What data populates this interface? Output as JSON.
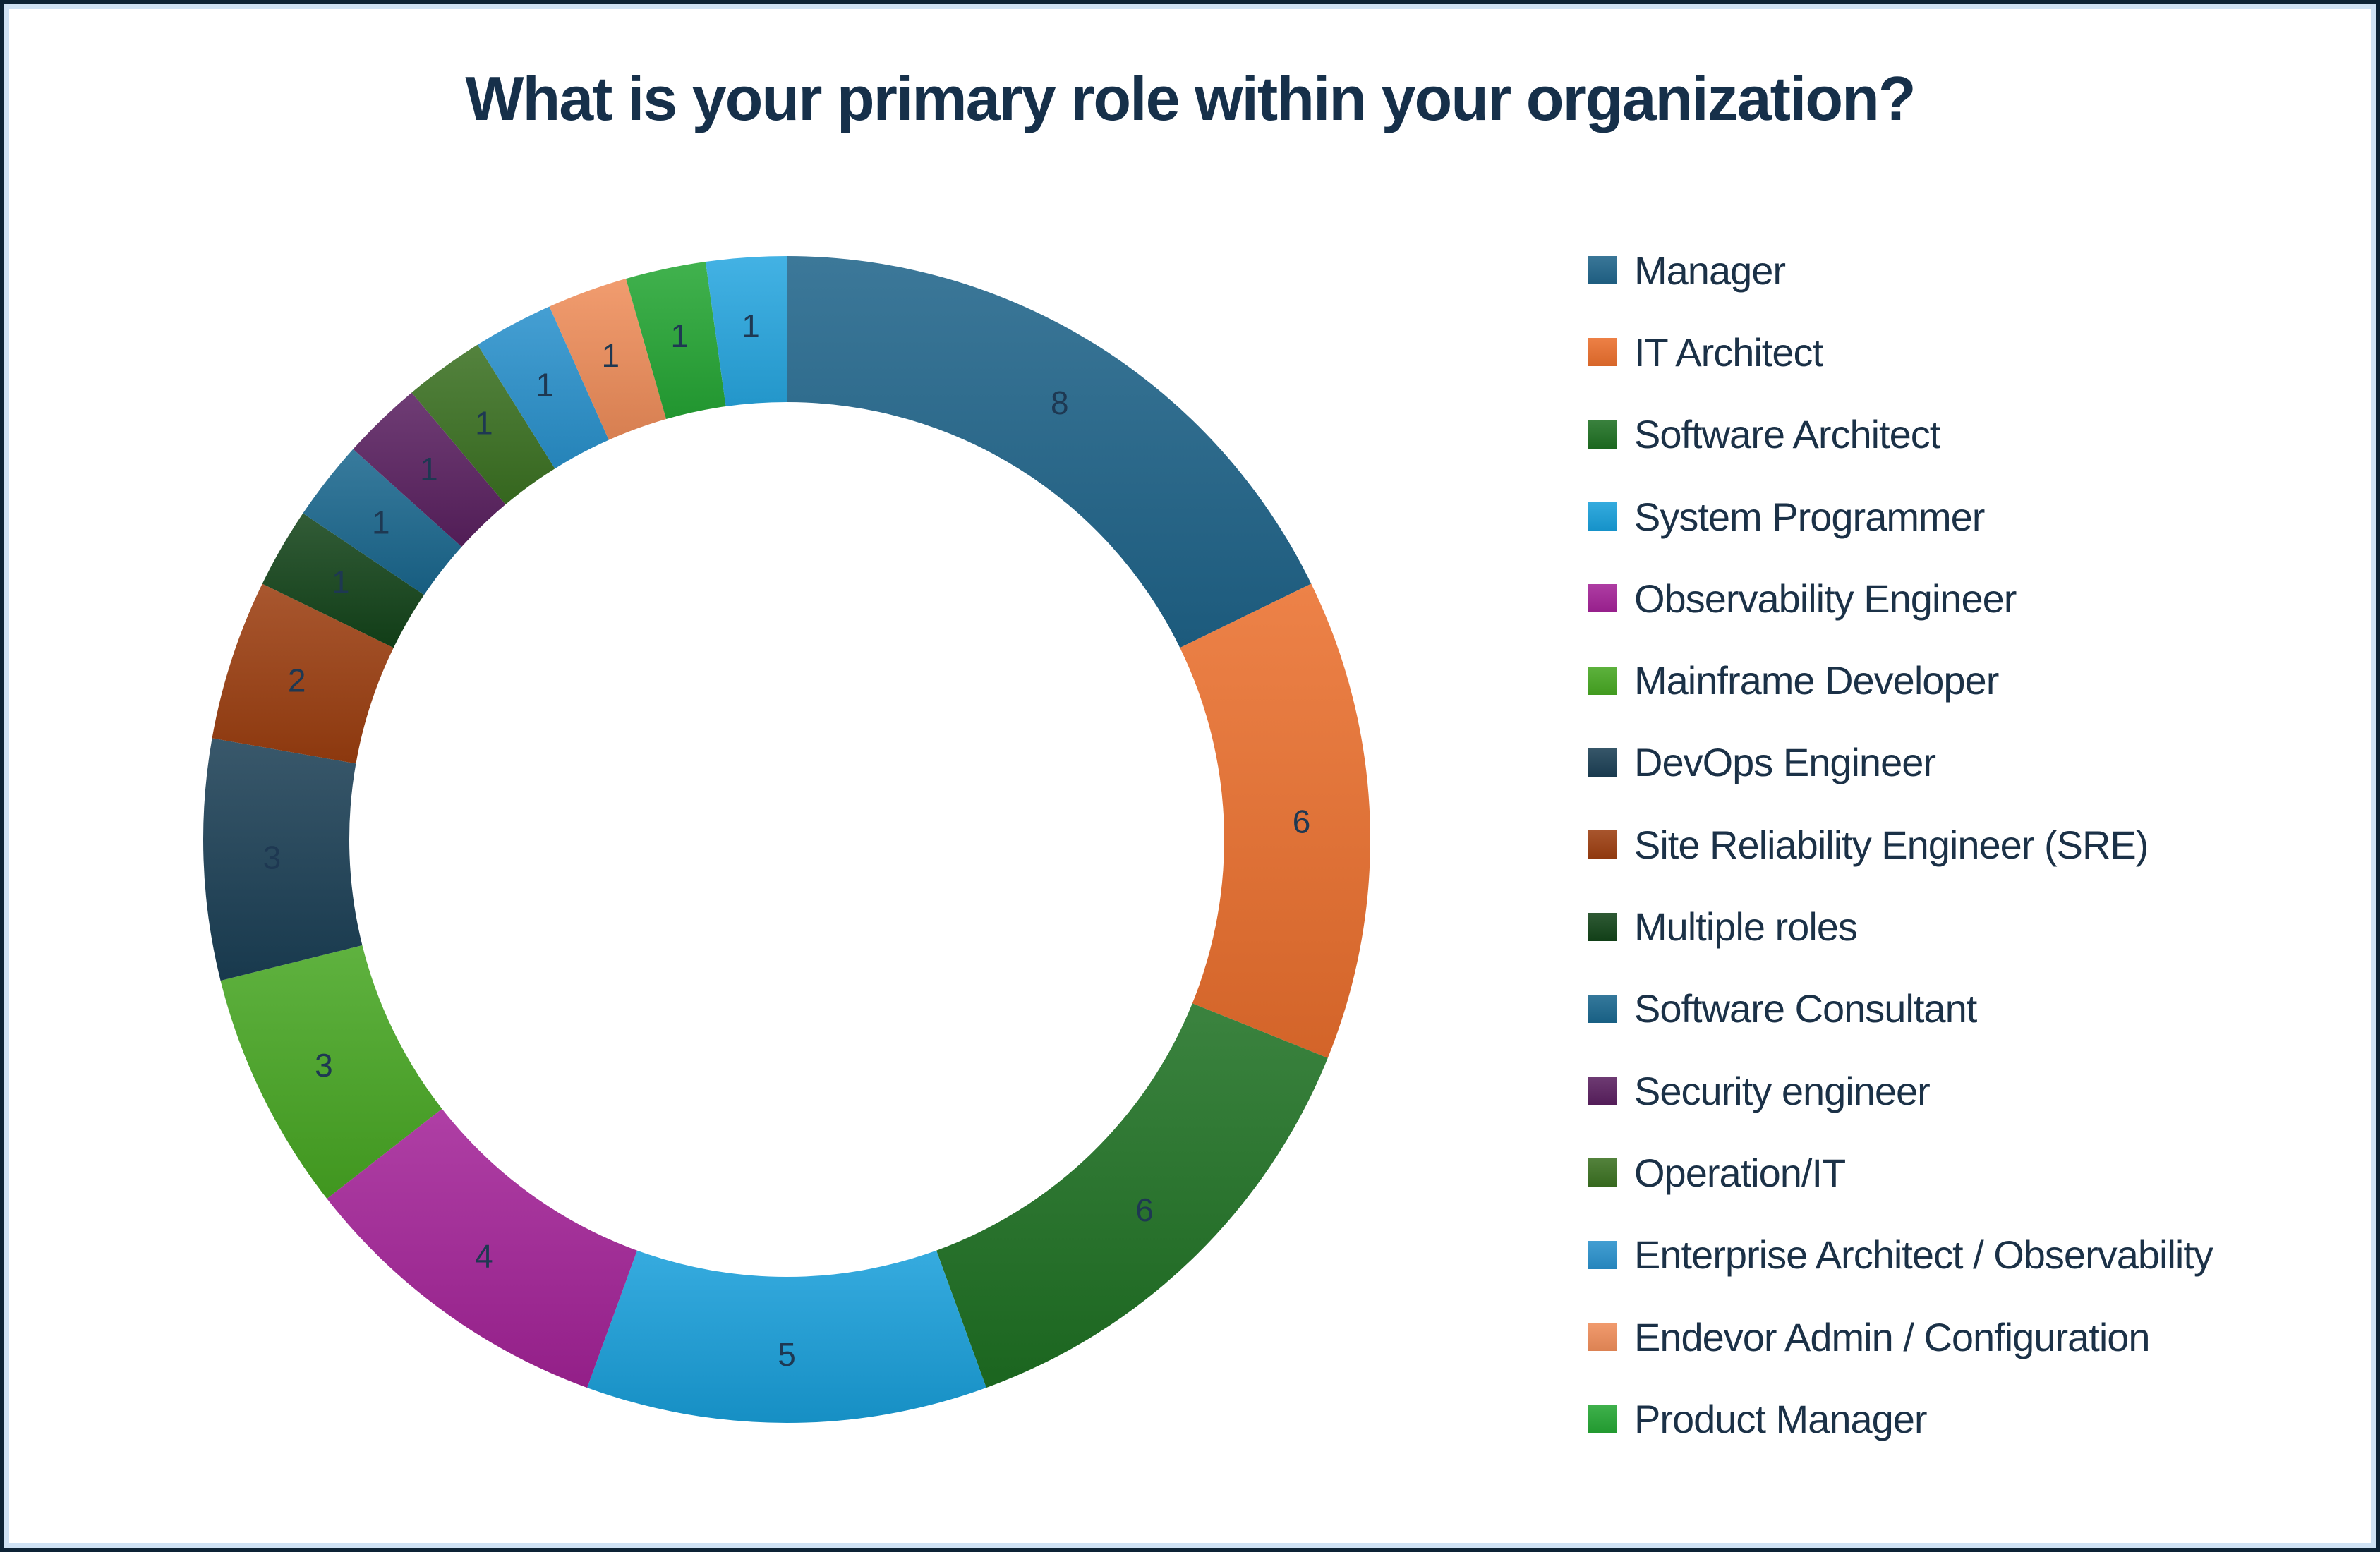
{
  "title": "What is your primary role within your organization?",
  "chart_data": {
    "type": "pie",
    "subtype": "donut",
    "start_angle_deg": 0,
    "direction": "clockwise",
    "total": 45,
    "legend_position": "right",
    "legend_visible_items": 15,
    "slices": [
      {
        "label": "Manager",
        "value": 8,
        "color": "#1f648a"
      },
      {
        "label": "IT Architect",
        "value": 6,
        "color": "#ea6f2d"
      },
      {
        "label": "Software Architect",
        "value": 6,
        "color": "#1e7022"
      },
      {
        "label": "System Programmer",
        "value": 5,
        "color": "#189fda"
      },
      {
        "label": "Observability Engineer",
        "value": 4,
        "color": "#a32297"
      },
      {
        "label": "Mainframe Developer",
        "value": 3,
        "color": "#47a722"
      },
      {
        "label": "DevOps Engineer",
        "value": 3,
        "color": "#1b3f55"
      },
      {
        "label": "Site Reliability Engineer (SRE)",
        "value": 2,
        "color": "#9c3e10"
      },
      {
        "label": "Multiple roles",
        "value": 1,
        "color": "#134419"
      },
      {
        "label": "Software Consultant",
        "value": 1,
        "color": "#1a678e"
      },
      {
        "label": "Security engineer",
        "value": 1,
        "color": "#5a2060"
      },
      {
        "label": "Operation/IT",
        "value": 1,
        "color": "#3b7121"
      },
      {
        "label": "Enterprise Architect / Observability",
        "value": 1,
        "color": "#2991cc"
      },
      {
        "label": "Endevor Admin / Configuration",
        "value": 1,
        "color": "#ef8d5a"
      },
      {
        "label": "Product Manager",
        "value": 1,
        "color": "#25a634"
      },
      {
        "label": "",
        "value": 1,
        "color": "#27a7e0"
      }
    ]
  },
  "style": {
    "title_color": "#16304a",
    "slice_value_label_color": "#1e3852",
    "legend_text_color": "#1b3147",
    "frame_outer_border_color": "#0d2335",
    "frame_inner_border_color": "#cfe2f4",
    "background_color": "#ffffff"
  }
}
